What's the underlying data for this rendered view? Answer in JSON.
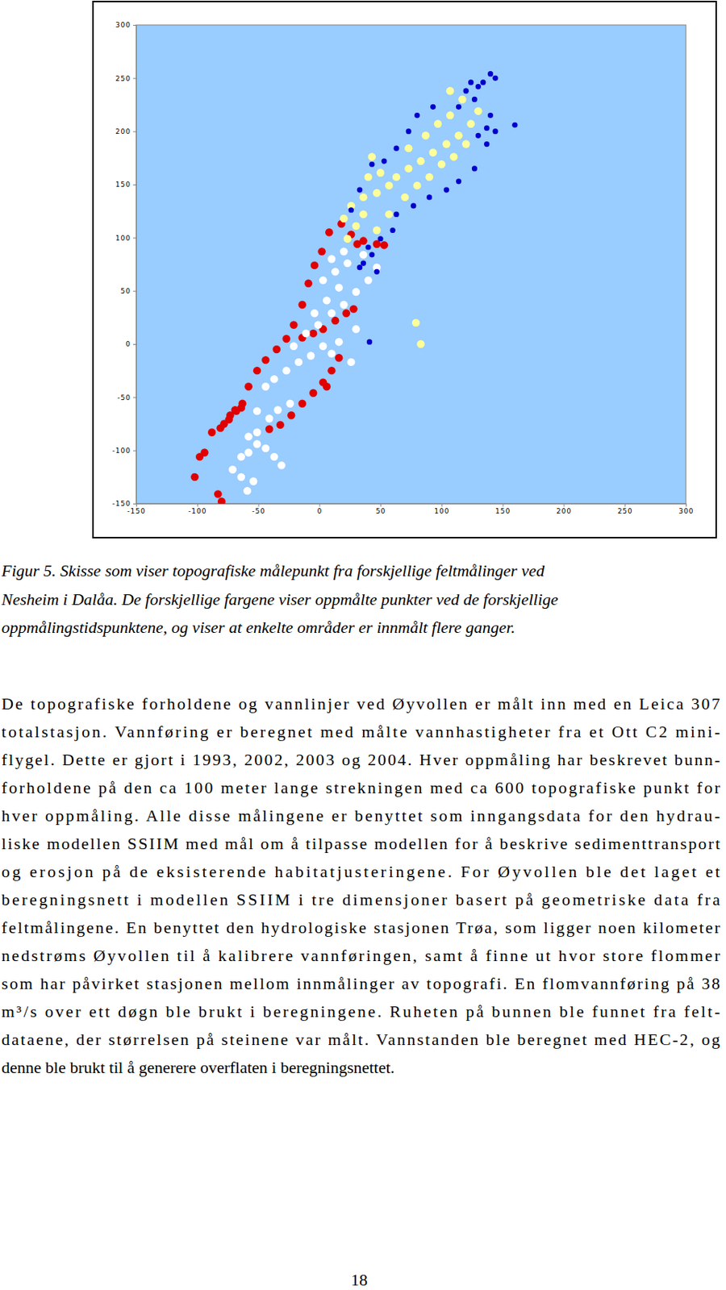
{
  "chart_data": {
    "type": "scatter",
    "marker": "circle",
    "grid": false,
    "xlim": [
      -150,
      300
    ],
    "ylim": [
      -150,
      300
    ],
    "xticks": [
      -150,
      -100,
      -50,
      0,
      50,
      100,
      150,
      200,
      250,
      300
    ],
    "yticks": [
      -150,
      -100,
      -50,
      0,
      50,
      100,
      150,
      200,
      250,
      300
    ],
    "series": [
      {
        "color": "#e00000",
        "x": [
          -102,
          -83,
          -80,
          -94,
          -98,
          -88,
          -81,
          -74,
          -68,
          -63,
          -58,
          -51,
          -44,
          -35,
          -27,
          -21,
          -14,
          -9,
          -4,
          2,
          8,
          18,
          26,
          36,
          47,
          53,
          31,
          -41,
          -32,
          -23,
          -14,
          -5,
          3,
          10,
          6,
          16,
          28,
          22,
          13,
          3,
          -5,
          -14,
          -69,
          -73,
          -78,
          -64
        ],
        "values": [
          -125,
          -141,
          -148,
          -102,
          -106,
          -83,
          -79,
          -71,
          -63,
          -56,
          -40,
          -25,
          -15,
          -5,
          5,
          18,
          37,
          57,
          74,
          87,
          105,
          113,
          103,
          97,
          94,
          93,
          94,
          -80,
          -76,
          -67,
          -56,
          -46,
          -36,
          -25,
          -40,
          -13,
          33,
          29,
          22,
          14,
          10,
          6,
          -62,
          -67,
          -75,
          -60
        ]
      },
      {
        "color": "#ffffff",
        "x": [
          -59,
          -54,
          -64,
          -71,
          -58,
          -51,
          -31,
          -37,
          -44,
          -51,
          -41,
          -34,
          -24,
          -44,
          -37,
          -27,
          -17,
          -7,
          3,
          10,
          16,
          26,
          30,
          -21,
          -11,
          -1,
          10,
          20,
          -4,
          6,
          16,
          30,
          40,
          47,
          3,
          13,
          23,
          36,
          10,
          20,
          -58,
          -51,
          -64
        ],
        "values": [
          -138,
          -129,
          -125,
          -118,
          -102,
          -94,
          -114,
          -106,
          -98,
          -83,
          -70,
          -62,
          -56,
          -40,
          -33,
          -25,
          -17,
          -11,
          -2,
          -9,
          2,
          -17,
          14,
          -2,
          10,
          18,
          29,
          37,
          29,
          41,
          53,
          49,
          60,
          72,
          60,
          68,
          76,
          84,
          80,
          87,
          -87,
          -63,
          -106
        ]
      },
      {
        "color": "#ffff99",
        "x": [
          20,
          26,
          36,
          47,
          57,
          63,
          73,
          83,
          93,
          104,
          114,
          124,
          130,
          107,
          117,
          43,
          50,
          36,
          57,
          70,
          80,
          90,
          100,
          110,
          120,
          30,
          47,
          40,
          73,
          87,
          97,
          107,
          23,
          79,
          83
        ],
        "values": [
          118,
          130,
          138,
          142,
          149,
          157,
          165,
          172,
          180,
          188,
          196,
          207,
          219,
          238,
          230,
          176,
          161,
          122,
          122,
          138,
          149,
          157,
          169,
          176,
          188,
          111,
          107,
          157,
          184,
          196,
          207,
          215,
          99,
          20,
          0
        ]
      },
      {
        "color": "#0000cc",
        "x": [
          33,
          43,
          40,
          50,
          60,
          41,
          63,
          77,
          90,
          104,
          114,
          127,
          137,
          144,
          160,
          140,
          137,
          130,
          127,
          120,
          130,
          140,
          134,
          124,
          114,
          93,
          80,
          73,
          63,
          53,
          43,
          33,
          26,
          36,
          47,
          144
        ],
        "values": [
          72,
          84,
          91,
          99,
          107,
          2,
          122,
          130,
          138,
          145,
          153,
          165,
          188,
          200,
          206,
          215,
          203,
          196,
          230,
          238,
          242,
          254,
          246,
          246,
          223,
          223,
          215,
          200,
          184,
          172,
          169,
          145,
          126,
          76,
          68,
          250
        ]
      }
    ]
  },
  "caption": [
    "Figur 5. Skisse som viser topografiske målepunkt fra forskjellige feltmålinger ved",
    "Nesheim i Dalåa. De forskjellige fargene viser oppmålte punkter ved de forskjellige",
    "oppmålingstidspunktene, og viser at enkelte områder er innmålt flere ganger."
  ],
  "body": [
    "De topografiske forholdene og vannlinjer ved Øyvollen er målt inn med en Leica 307",
    "totalstasjon. Vannføring er beregnet med målte vannhastigheter fra et Ott C2 mini-",
    "flygel. Dette er gjort i 1993, 2002, 2003 og 2004. Hver oppmåling har beskrevet bunn-",
    "forholdene på den ca 100 meter lange strekningen med ca 600 topografiske punkt for",
    "hver oppmåling. Alle disse målingene er benyttet som inngangsdata for den hydrau-",
    "liske modellen SSIIM med mål om å tilpasse modellen for å beskrive sedimenttransport",
    "og erosjon på de eksisterende habitatjusteringene. For Øyvollen ble det laget et",
    "beregningsnett i modellen SSIIM i tre dimensjoner basert på geometriske data fra",
    "feltmålingene. En benyttet den hydrologiske stasjonen Trøa, som ligger noen kilometer",
    "nedstrøms Øyvollen til å kalibrere vannføringen, samt å finne ut hvor store flommer",
    "som har påvirket stasjonen mellom innmålinger av topografi. En flomvannføring på 38",
    "m³/s over ett døgn ble brukt i beregningene. Ruheten på bunnen ble funnet fra felt-",
    "dataene, der størrelsen på steinene var målt. Vannstanden ble beregnet med HEC-2, og",
    "denne ble brukt til å generere overflaten i beregningsnettet."
  ],
  "page_number": "18"
}
